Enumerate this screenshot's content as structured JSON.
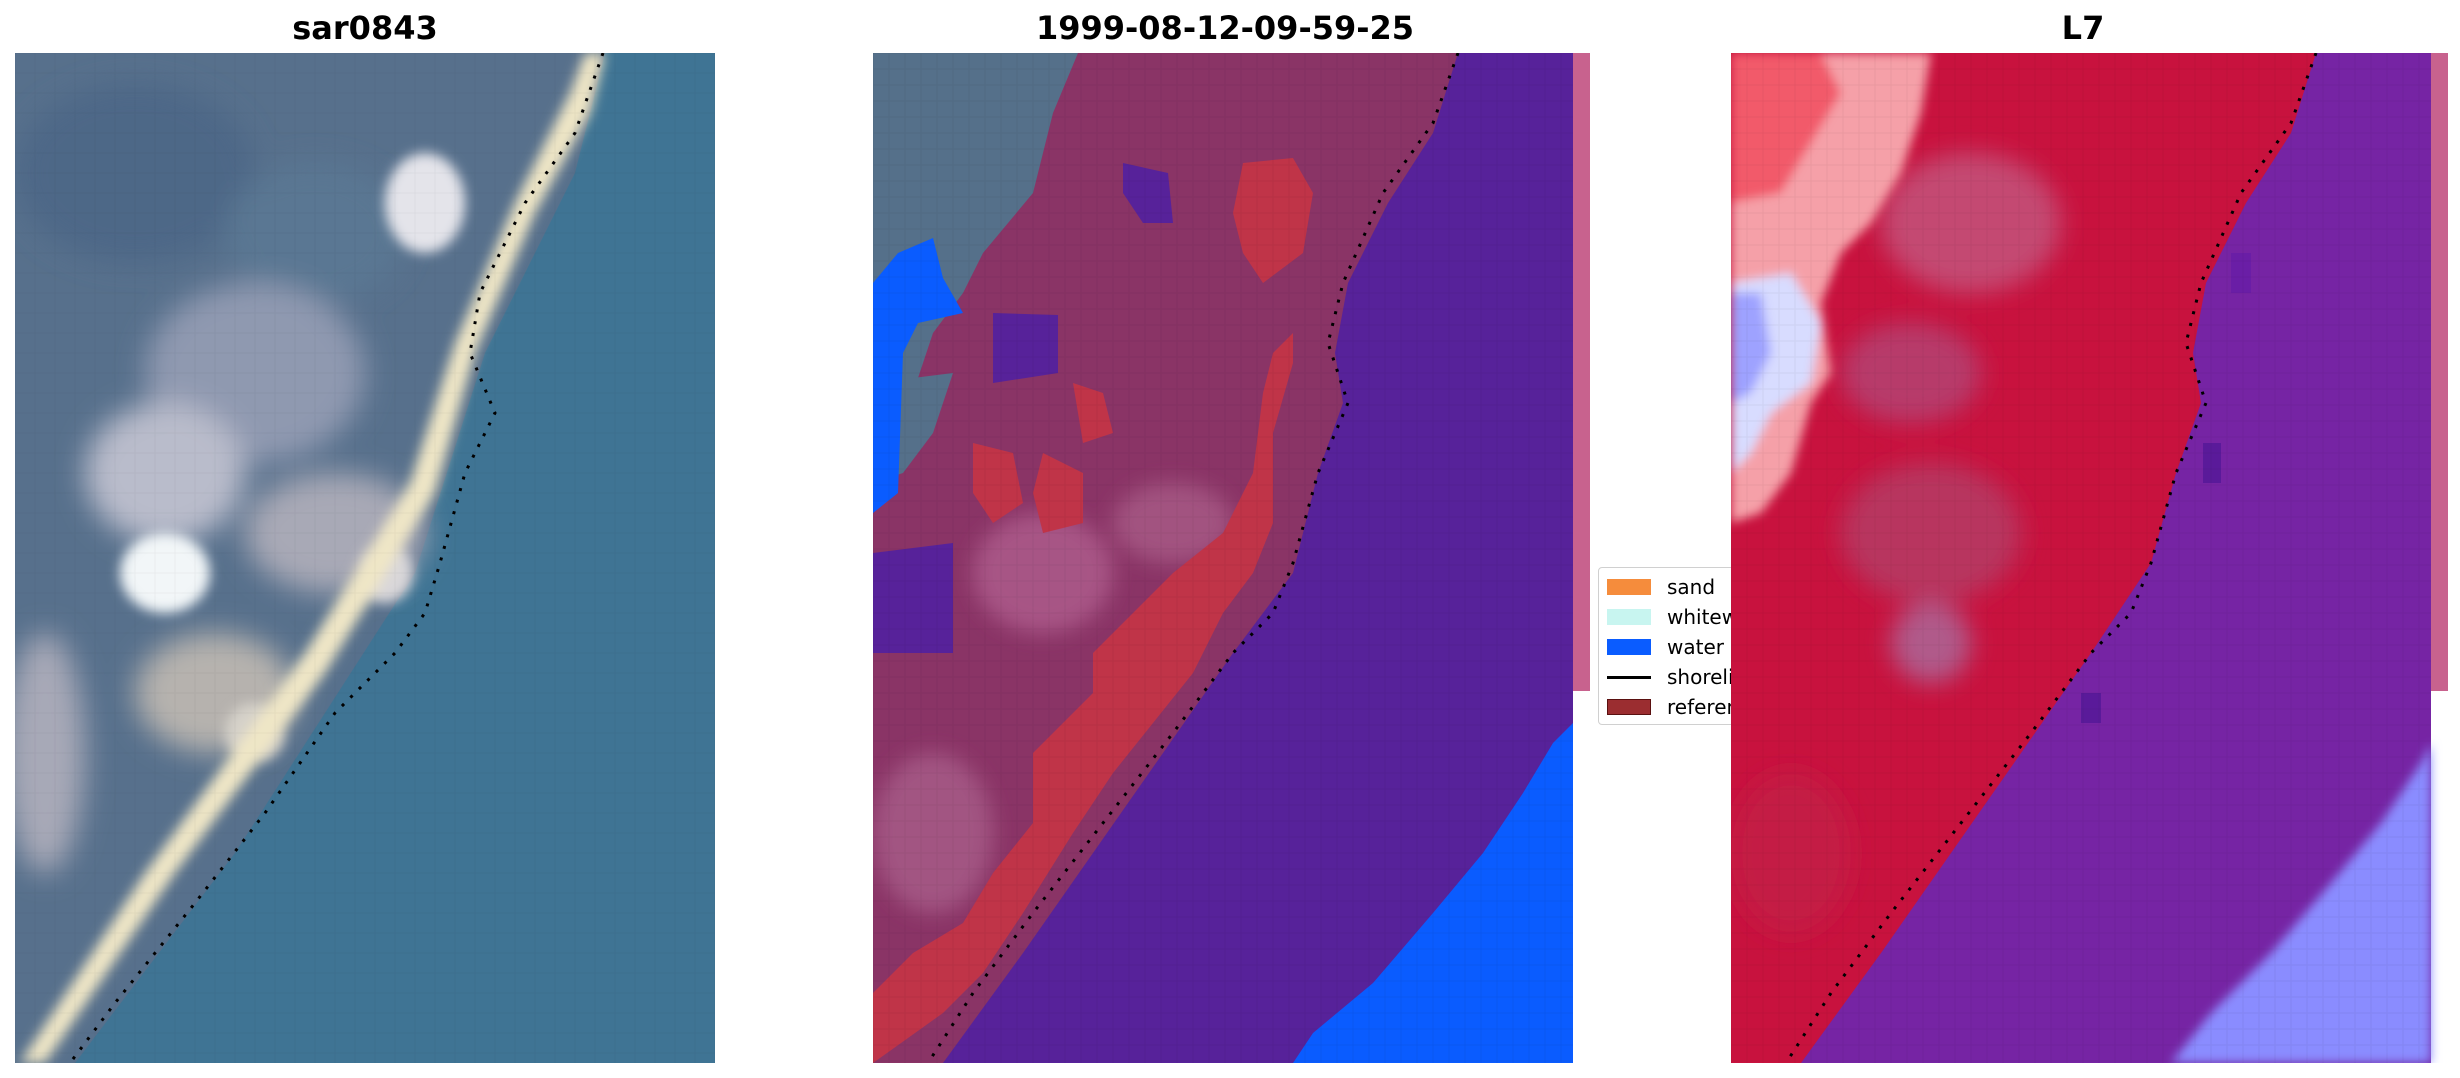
{
  "panels": [
    {
      "title": "sar0843"
    },
    {
      "title": "1999-08-12-09-59-25"
    },
    {
      "title": "L7"
    }
  ],
  "legend": {
    "items": [
      {
        "label": "sand",
        "color": "#f58c3c",
        "kind": "patch"
      },
      {
        "label": "whitewater",
        "color": "#c8f5f0",
        "kind": "patch"
      },
      {
        "label": "water",
        "color": "#0a5cff",
        "kind": "patch"
      },
      {
        "label": "shoreline",
        "color": "#000000",
        "kind": "line"
      },
      {
        "label": "reference",
        "color": "#9b2d30",
        "kind": "patch"
      }
    ]
  },
  "colors": {
    "rgb_land": "#55708a",
    "rgb_water": "#3f7494",
    "rgb_beach": "#efe8c8",
    "class_land": "#8a3466",
    "class_water": "#57229a",
    "class_water_blue": "#0a5cff",
    "class_sand": "#c03448",
    "l7_land": "#c8123e",
    "l7_water": "#7624a4",
    "l7_high": "#f25a6a",
    "l7_low": "#8a8cff"
  }
}
